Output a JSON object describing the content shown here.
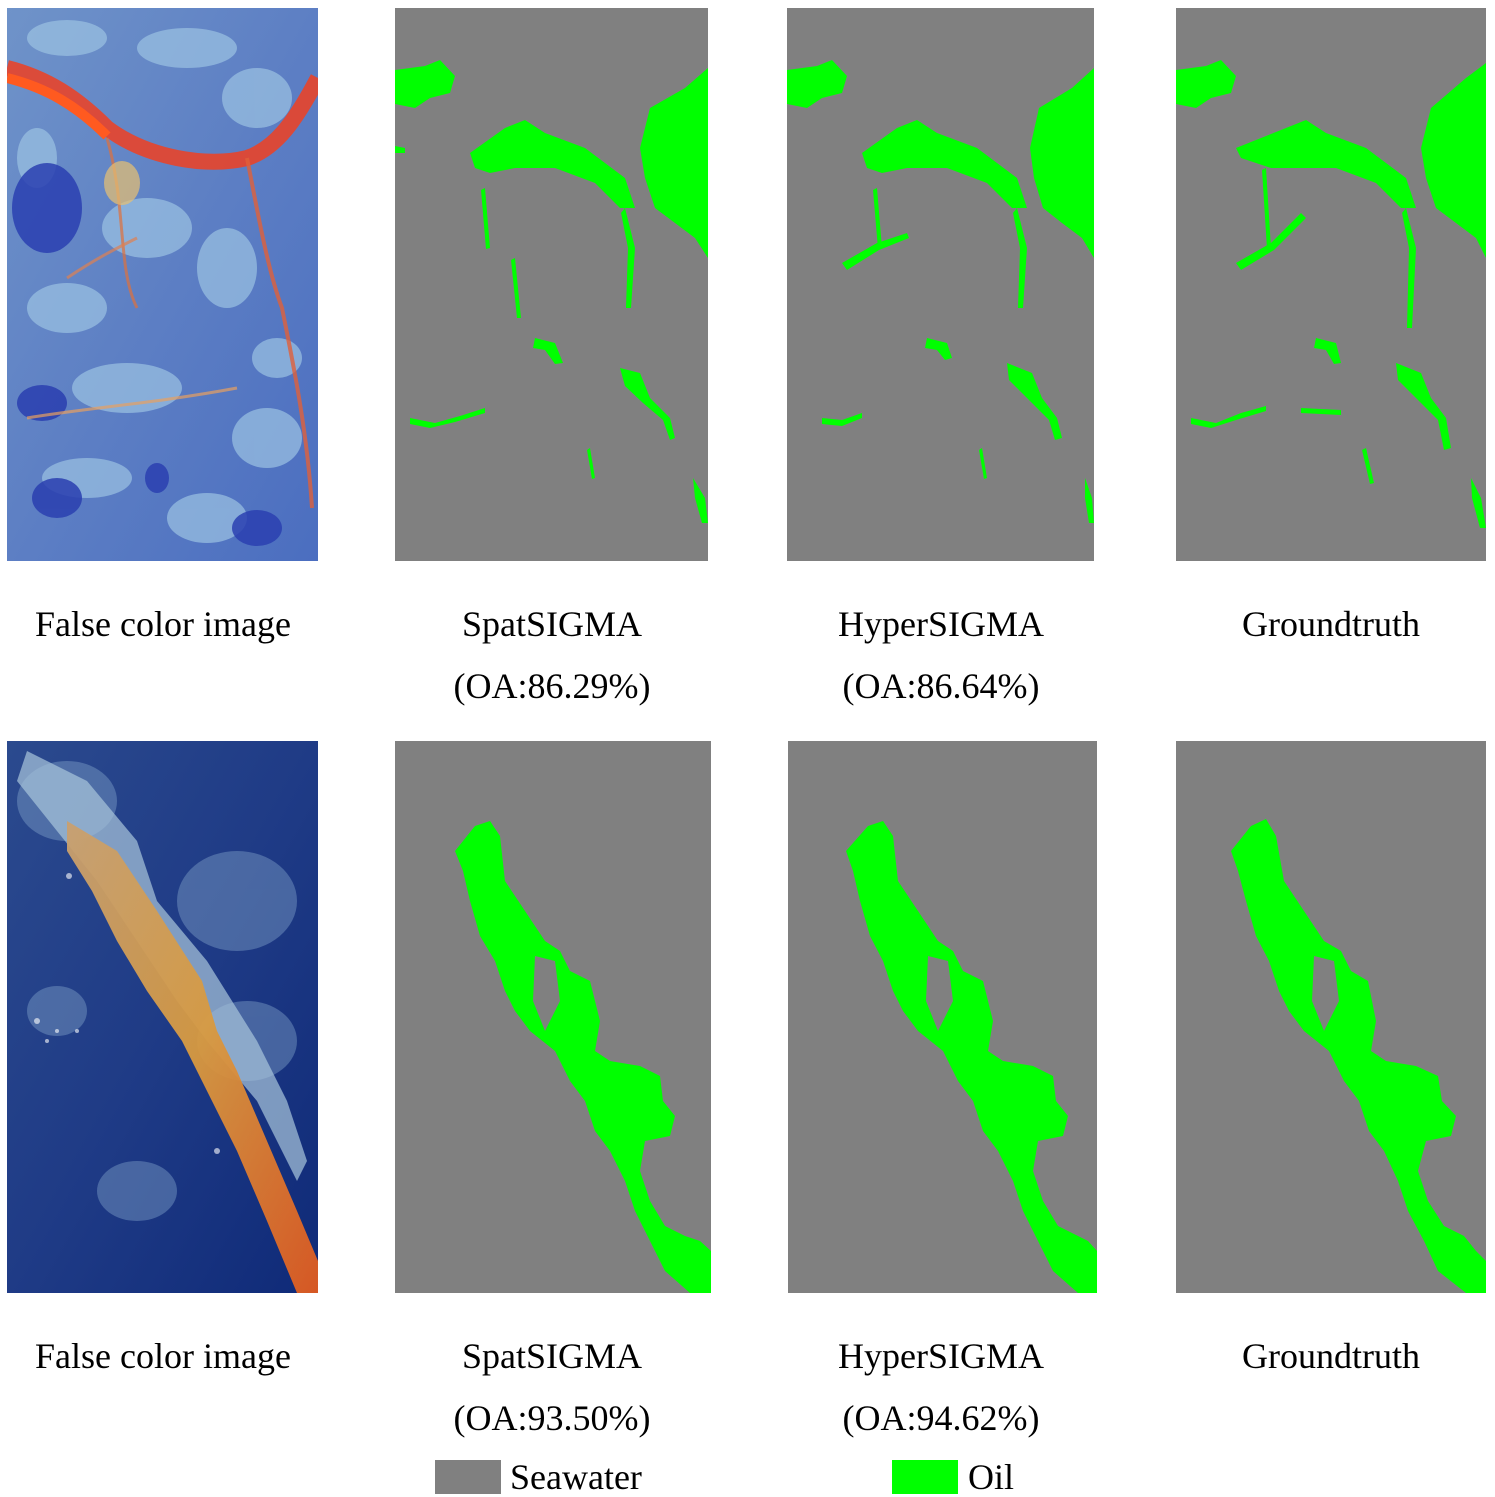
{
  "colors": {
    "seawater": "#808080",
    "oil": "#00ff00"
  },
  "rows": [
    {
      "panels": [
        {
          "caption": "False color image",
          "metric": ""
        },
        {
          "caption": "SpatSIGMA",
          "metric": "(OA:86.29%)"
        },
        {
          "caption": "HyperSIGMA",
          "metric": "(OA:86.64%)"
        },
        {
          "caption": "Groundtruth",
          "metric": ""
        }
      ]
    },
    {
      "panels": [
        {
          "caption": "False color image",
          "metric": ""
        },
        {
          "caption": "SpatSIGMA",
          "metric": "(OA:93.50%)"
        },
        {
          "caption": "HyperSIGMA",
          "metric": "(OA:94.62%)"
        },
        {
          "caption": "Groundtruth",
          "metric": ""
        }
      ]
    }
  ],
  "legend": {
    "seawater_label": "Seawater",
    "oil_label": "Oil"
  }
}
